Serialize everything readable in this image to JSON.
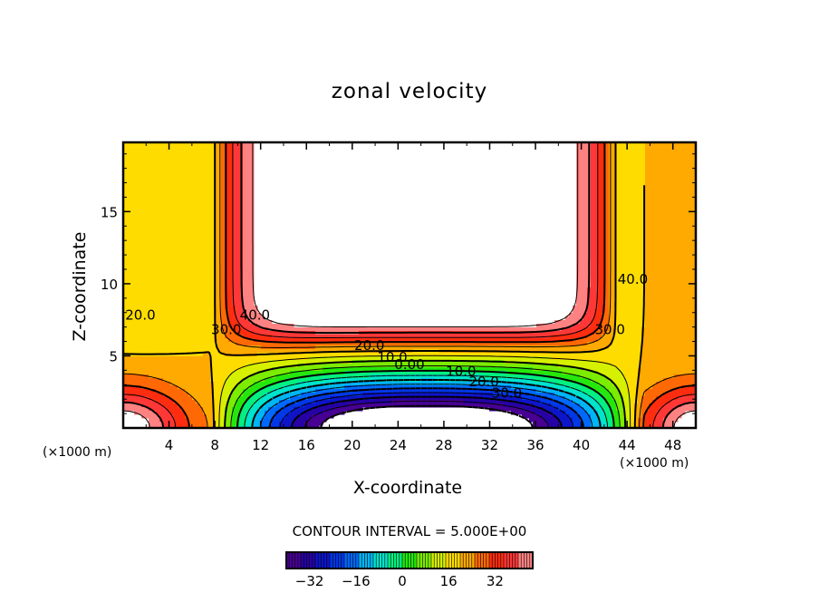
{
  "chart_data": {
    "type": "contour",
    "title": "zonal velocity",
    "xlabel": "X-coordinate",
    "ylabel": "Z-coordinate",
    "x_unit_label": "(×1000 m)",
    "xlim": [
      0,
      50
    ],
    "ylim": [
      0,
      19.8
    ],
    "x_ticks": [
      4,
      8,
      12,
      16,
      20,
      24,
      28,
      32,
      36,
      40,
      44,
      48
    ],
    "x_tick_labels": [
      "4",
      "8",
      "12",
      "16",
      "20",
      "24",
      "28",
      "32",
      "36",
      "40",
      "44",
      "48"
    ],
    "y_ticks": [
      5,
      10,
      15
    ],
    "y_tick_labels": [
      "5",
      "10",
      "15"
    ],
    "contour_interval_text": "CONTOUR INTERVAL = 5.000E+00",
    "contour_labels": [
      {
        "text": "20.0",
        "x": 1.5,
        "z": 7.5
      },
      {
        "text": "30.0",
        "x": 9.0,
        "z": 6.5
      },
      {
        "text": "40.0",
        "x": 11.5,
        "z": 7.5
      },
      {
        "text": "20.0",
        "x": 21.5,
        "z": 5.4
      },
      {
        "text": "10.0",
        "x": 23.5,
        "z": 4.6
      },
      {
        "text": "0.00",
        "x": 25.0,
        "z": 4.1
      },
      {
        "text": "10.0",
        "x": 29.5,
        "z": 3.6
      },
      {
        "text": "20.0",
        "x": 31.5,
        "z": 2.9
      },
      {
        "text": "30.0",
        "x": 33.5,
        "z": 2.1
      },
      {
        "text": "30.0",
        "x": 42.5,
        "z": 6.5
      },
      {
        "text": "40.0",
        "x": 44.5,
        "z": 10.0
      }
    ],
    "colorbar": {
      "min": -40,
      "max": 45,
      "ticks": [
        -32,
        -16,
        0,
        16,
        32
      ],
      "tick_labels": [
        "−32",
        "−16",
        "0",
        "16",
        "32"
      ]
    },
    "white_regions": [
      "values above 45 (upper center jet)",
      "values below -40 (lower center)"
    ]
  },
  "colors": {
    "axis": "#000000",
    "background": "#ffffff"
  }
}
